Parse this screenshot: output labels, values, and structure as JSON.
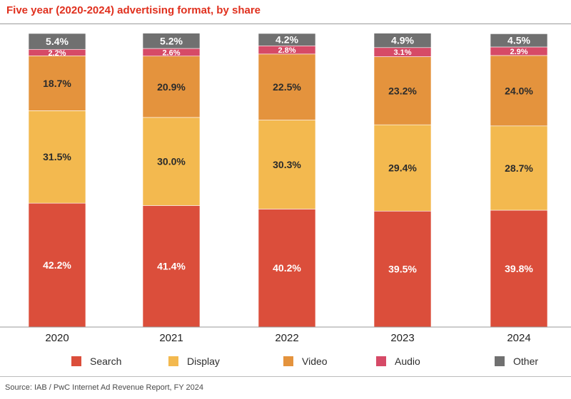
{
  "title": "Five year (2020-2024) advertising format, by share",
  "source": "Source: IAB / PwC Internet Ad Revenue Report, FY 2024",
  "colors": {
    "title": "#e0301e",
    "Search": "#db4e3b",
    "Display": "#f3b94f",
    "Video": "#e4933d",
    "Audio": "#d64a67",
    "Other": "#707070"
  },
  "chart_data": {
    "type": "bar",
    "stacked": true,
    "orientation": "vertical",
    "title": "Five year (2020-2024) advertising format, by share",
    "categories": [
      "2020",
      "2021",
      "2022",
      "2023",
      "2024"
    ],
    "series": [
      {
        "name": "Search",
        "values": [
          42.2,
          41.4,
          40.2,
          39.5,
          39.8
        ],
        "labels": [
          "42.2%",
          "41.4%",
          "40.2%",
          "39.5%",
          "39.8%"
        ]
      },
      {
        "name": "Display",
        "values": [
          31.5,
          30.0,
          30.3,
          29.4,
          28.7
        ],
        "labels": [
          "31.5%",
          "30.0%",
          "30.3%",
          "29.4%",
          "28.7%"
        ]
      },
      {
        "name": "Video",
        "values": [
          18.7,
          20.9,
          22.5,
          23.2,
          24.0
        ],
        "labels": [
          "18.7%",
          "20.9%",
          "22.5%",
          "23.2%",
          "24.0%"
        ]
      },
      {
        "name": "Audio",
        "values": [
          2.2,
          2.6,
          2.8,
          3.1,
          2.9
        ],
        "labels": [
          "2.2%",
          "2.6%",
          "2.8%",
          "3.1%",
          "2.9%"
        ]
      },
      {
        "name": "Other",
        "values": [
          5.4,
          5.2,
          4.2,
          4.9,
          4.5
        ],
        "labels": [
          "5.4%",
          "5.2%",
          "4.2%",
          "4.9%",
          "4.5%"
        ]
      }
    ],
    "legend": {
      "position": "bottom",
      "entries": [
        "Search",
        "Display",
        "Video",
        "Audio",
        "Other"
      ]
    },
    "grid": false,
    "ylim": [
      0,
      100
    ]
  }
}
